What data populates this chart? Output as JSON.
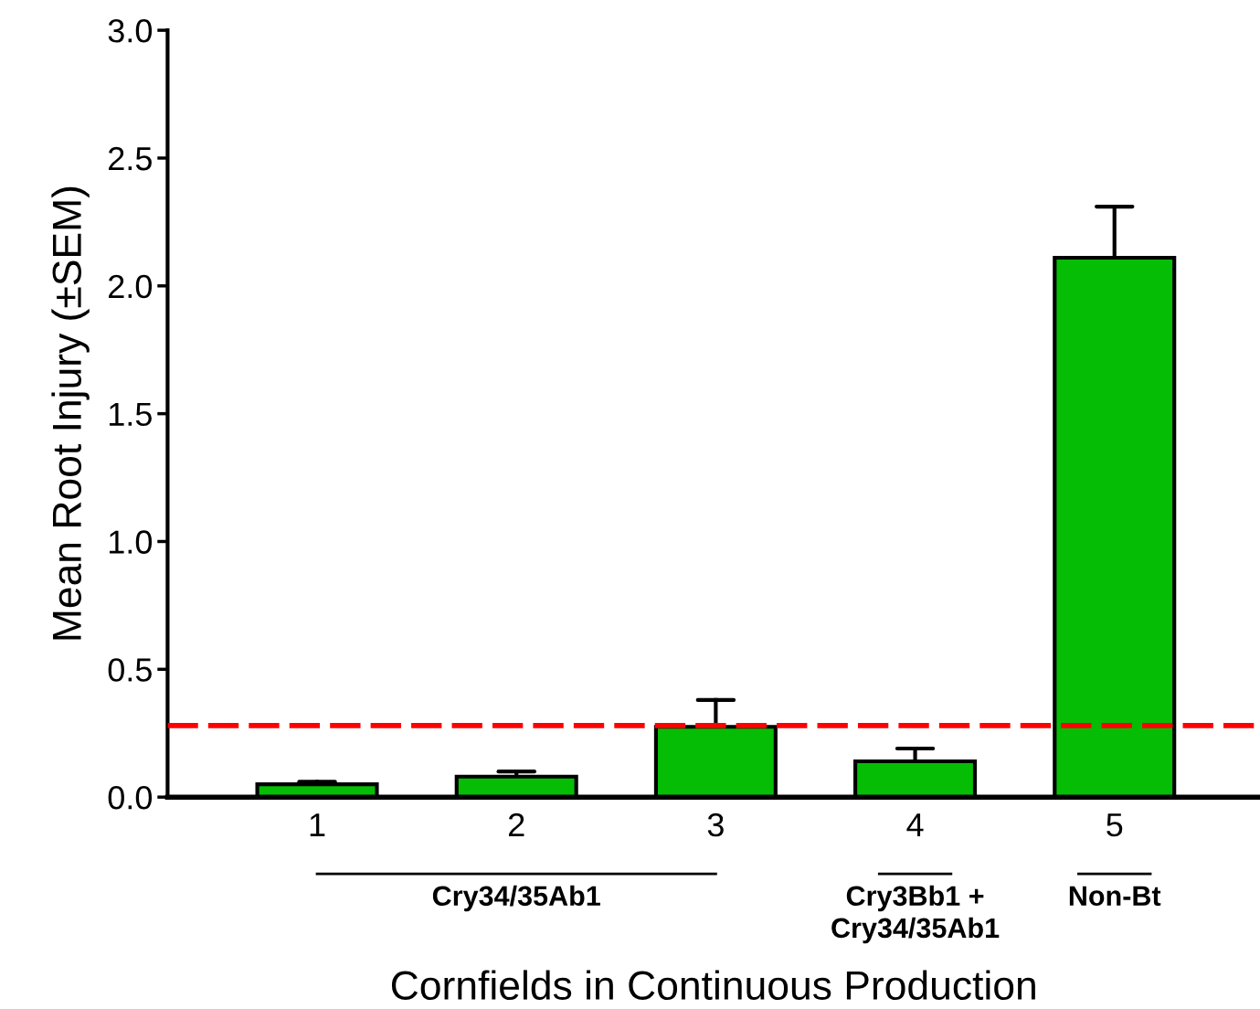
{
  "chart_data": {
    "type": "bar",
    "xlabel": "Cornfields in Continuous Production",
    "ylabel": "Mean Root Injury (±SEM)",
    "categories": [
      "1",
      "2",
      "3",
      "4",
      "5"
    ],
    "values": [
      0.05,
      0.08,
      0.275,
      0.14,
      2.11
    ],
    "errors": [
      [
        0.05,
        0.06
      ],
      [
        0.08,
        0.1
      ],
      [
        0.275,
        0.38
      ],
      [
        0.14,
        0.19
      ],
      [
        2.11,
        2.31
      ]
    ],
    "color": "#05bd05",
    "ylim": [
      0,
      3
    ],
    "yticks": [
      {
        "value": 0,
        "label": "0.0"
      },
      {
        "value": 0.5,
        "label": "0.5"
      },
      {
        "value": 1,
        "label": "1.0"
      },
      {
        "value": 1.5,
        "label": "1.5"
      },
      {
        "value": 2,
        "label": "2.0"
      },
      {
        "value": 2.5,
        "label": "2.5"
      },
      {
        "value": 3,
        "label": "3.0"
      }
    ],
    "ref_lines": [
      {
        "axis": "y",
        "value": 0.28,
        "color": "#ff0000",
        "line_style": "dashed"
      }
    ],
    "annotations": [
      "Cry34/35Ab1",
      "Cry3Bb1 +\nCry34/35Ab1",
      "Non-Bt"
    ],
    "grid": false,
    "legend": false
  }
}
